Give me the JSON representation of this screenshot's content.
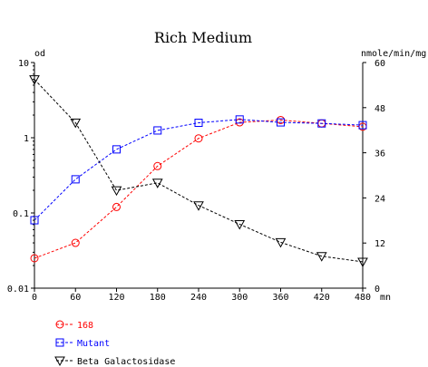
{
  "chart_data": {
    "type": "line",
    "title": "Rich Medium",
    "x": {
      "range": [
        0,
        480
      ],
      "ticks": [
        0,
        60,
        120,
        180,
        240,
        300,
        360,
        420,
        480
      ],
      "tick_labels": [
        "0",
        "60",
        "120",
        "180",
        "240",
        "300",
        "360",
        "420",
        "480"
      ],
      "unit_label": "mn"
    },
    "y_left": {
      "label": "od",
      "scale": "log",
      "range": [
        0.01,
        10
      ],
      "ticks": [
        0.01,
        0.1,
        1,
        10
      ],
      "tick_labels": [
        "0.01",
        "0.1",
        "1",
        "10"
      ]
    },
    "y_right": {
      "label": "nmole/min/mg",
      "scale": "linear",
      "range": [
        0,
        60
      ],
      "ticks": [
        0,
        12,
        24,
        36,
        48,
        60
      ],
      "tick_labels": [
        "0",
        "12",
        "24",
        "36",
        "48",
        "60"
      ]
    },
    "series": [
      {
        "name": "168",
        "axis": "left",
        "marker": "circle",
        "color": "#ff0000",
        "x": [
          0,
          60,
          120,
          180,
          240,
          300,
          360,
          420,
          480
        ],
        "values": [
          0.025,
          0.04,
          0.12,
          0.42,
          0.98,
          1.6,
          1.72,
          1.55,
          1.4
        ]
      },
      {
        "name": "Mutant",
        "axis": "left",
        "marker": "square",
        "color": "#0000ff",
        "x": [
          0,
          60,
          120,
          180,
          240,
          300,
          360,
          420,
          480
        ],
        "values": [
          0.08,
          0.28,
          0.7,
          1.25,
          1.58,
          1.75,
          1.6,
          1.55,
          1.47
        ]
      },
      {
        "name": "Beta Galactosidase",
        "axis": "right",
        "marker": "triangle-down",
        "color": "#000000",
        "x": [
          0,
          60,
          120,
          180,
          240,
          300,
          360,
          420,
          480
        ],
        "values": [
          55.5,
          44,
          26,
          28,
          22,
          17,
          12.2,
          8.5,
          7
        ]
      }
    ],
    "grid": false,
    "legend_placement": "bottom-left"
  }
}
